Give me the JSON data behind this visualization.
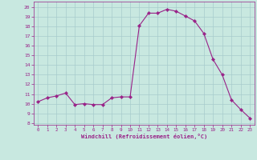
{
  "x": [
    0,
    1,
    2,
    3,
    4,
    5,
    6,
    7,
    8,
    9,
    10,
    11,
    12,
    13,
    14,
    15,
    16,
    17,
    18,
    19,
    20,
    21,
    22,
    23
  ],
  "y": [
    10.2,
    10.6,
    10.8,
    11.1,
    9.9,
    10.0,
    9.9,
    9.9,
    10.6,
    10.7,
    10.7,
    18.1,
    19.4,
    19.4,
    19.8,
    19.6,
    19.1,
    18.6,
    17.3,
    14.6,
    13.0,
    10.4,
    9.4,
    8.5
  ],
  "line_color": "#992288",
  "marker": "D",
  "marker_size": 2.2,
  "bg_color": "#C8E8E0",
  "grid_color": "#A8CCCC",
  "xlabel": "Windchill (Refroidissement éolien,°C)",
  "xlabel_color": "#992288",
  "tick_color": "#992288",
  "spine_color": "#992288",
  "ylim": [
    7.8,
    20.6
  ],
  "xlim": [
    -0.5,
    23.5
  ],
  "yticks": [
    8,
    9,
    10,
    11,
    12,
    13,
    14,
    15,
    16,
    17,
    18,
    19,
    20
  ],
  "xticks": [
    0,
    1,
    2,
    3,
    4,
    5,
    6,
    7,
    8,
    9,
    10,
    11,
    12,
    13,
    14,
    15,
    16,
    17,
    18,
    19,
    20,
    21,
    22,
    23
  ],
  "figsize": [
    3.2,
    2.0
  ],
  "dpi": 100
}
